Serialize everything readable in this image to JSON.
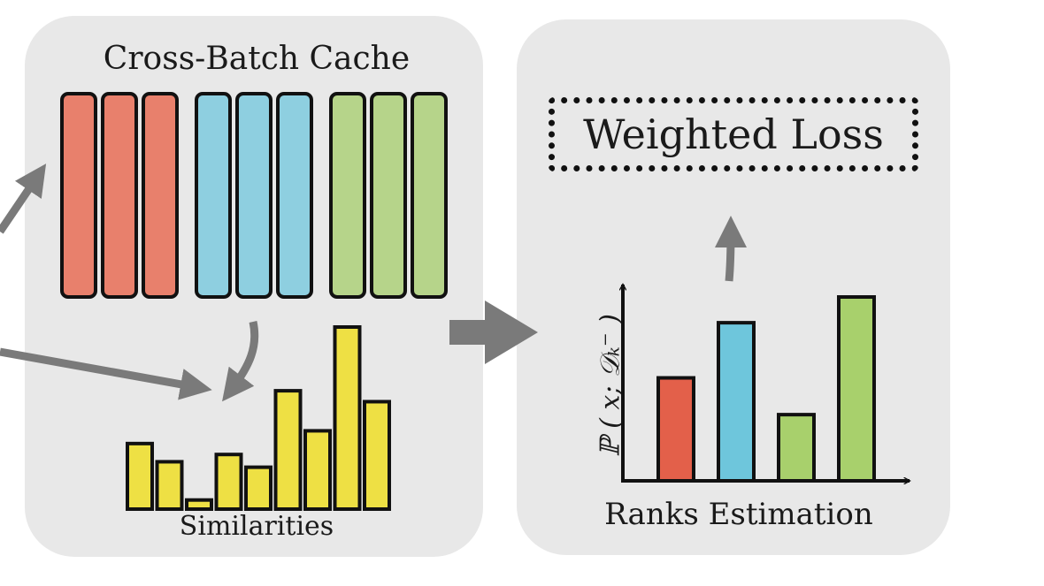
{
  "labels": {
    "cache_title": "Cross-Batch Cache",
    "similarities": "Similarities",
    "ranks_estimation": "Ranks Estimation",
    "weighted_loss": "Weighted Loss",
    "y_axis": "ℙ ( x; 𝒟ₖ⁻ )"
  },
  "colors": {
    "panel": "#e8e8e8",
    "red": "#e8806c",
    "blue": "#8ecfe0",
    "green": "#b6d48a",
    "yellow": "#eee044",
    "rank_red": "#e3604a",
    "rank_blue": "#6ec6dc",
    "rank_green": "#a8d06c",
    "arrow": "#7a7a7a",
    "stroke": "#111111"
  },
  "cache_groups": [
    {
      "name": "red",
      "color": "#e8806c",
      "count": 3
    },
    {
      "name": "blue",
      "color": "#8ecfe0",
      "count": 3
    },
    {
      "name": "green",
      "color": "#b6d48a",
      "count": 3
    }
  ],
  "chart_data": [
    {
      "type": "bar",
      "title": "Similarities",
      "values": [
        0.36,
        0.26,
        0.05,
        0.3,
        0.23,
        0.65,
        0.43,
        1.0,
        0.59
      ],
      "ylim": [
        0,
        1
      ]
    },
    {
      "type": "bar",
      "title": "Ranks Estimation",
      "values": [
        0.56,
        0.86,
        0.36,
        1.0
      ],
      "colors": [
        "#e3604a",
        "#6ec6dc",
        "#a8d06c",
        "#a8d06c"
      ],
      "ylim": [
        0,
        1.25
      ]
    }
  ]
}
